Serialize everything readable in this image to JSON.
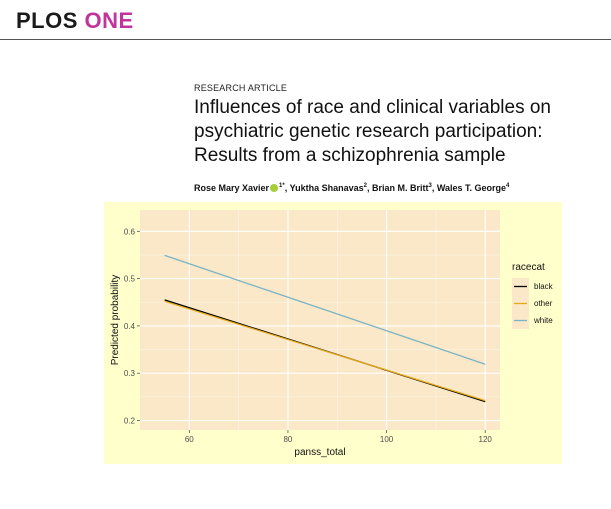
{
  "journal": {
    "name_part1": "PLOS",
    "name_part2": "ONE",
    "accent_color": "#c0359b"
  },
  "article": {
    "type": "RESEARCH ARTICLE",
    "title_lines": [
      "Influences of race and clinical variables on",
      "psychiatric genetic research participation:",
      "Results from a schizophrenia sample"
    ],
    "authors": [
      {
        "name": "Rose Mary Xavier",
        "sup": "1",
        "orcid": true,
        "corresponding": "*"
      },
      {
        "name": "Yuktha Shanavas",
        "sup": "2"
      },
      {
        "name": "Brian M. Britt",
        "sup": "3"
      },
      {
        "name": "Wales T. George",
        "sup": "4"
      }
    ]
  },
  "chart_data": {
    "type": "line",
    "xlabel": "panss_total",
    "ylabel": "Predicted probability",
    "xlim": [
      50,
      123
    ],
    "ylim": [
      0.18,
      0.645
    ],
    "x_ticks": [
      60,
      80,
      100,
      120
    ],
    "y_ticks": [
      0.2,
      0.3,
      0.4,
      0.5,
      0.6
    ],
    "grid": true,
    "legend": {
      "title": "racecat",
      "position": "right"
    },
    "series": [
      {
        "name": "black",
        "color": "#000000",
        "points": [
          [
            55,
            0.455
          ],
          [
            120,
            0.24
          ]
        ]
      },
      {
        "name": "other",
        "color": "#e6a817",
        "points": [
          [
            55,
            0.452
          ],
          [
            120,
            0.242
          ]
        ]
      },
      {
        "name": "white",
        "color": "#7ab4c4",
        "points": [
          [
            55,
            0.549
          ],
          [
            120,
            0.319
          ]
        ]
      }
    ],
    "colors": {
      "figure_bg": "#ffffcc",
      "panel_bg": "#fae8c8",
      "grid": "#ffffff"
    }
  }
}
